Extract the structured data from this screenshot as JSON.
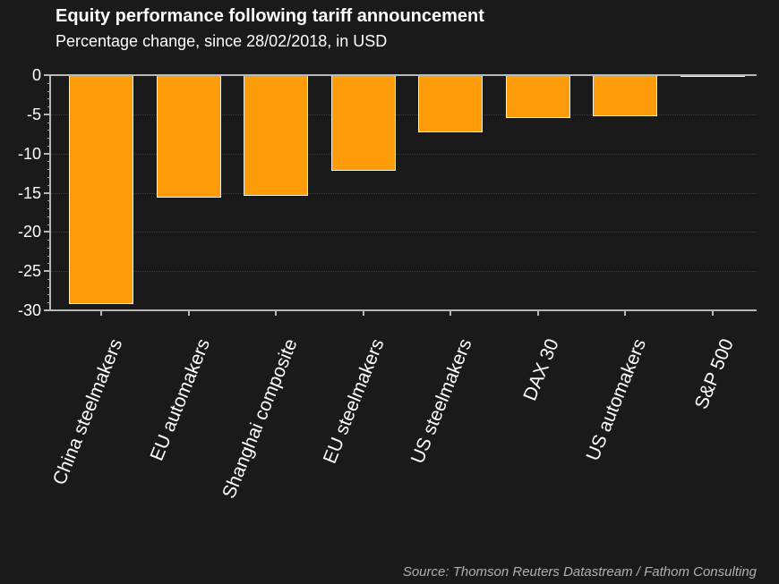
{
  "chart_data": {
    "type": "bar",
    "title": "Equity performance following tariff announcement",
    "subtitle": "Percentage change, since 28/02/2018, in USD",
    "categories": [
      "China steelmakers",
      "EU automakers",
      "Shanghai composite",
      "EU steelmakers",
      "US steelmakers",
      "DAX 30",
      "US automakers",
      "S&P 500"
    ],
    "values": [
      -29.2,
      -15.6,
      -15.4,
      -12.2,
      -7.3,
      -5.5,
      -5.3,
      -0.1
    ],
    "xlabel": "",
    "ylabel": "",
    "ylim": [
      -30,
      0
    ],
    "yticks": [
      0,
      -5,
      -10,
      -15,
      -20,
      -25,
      -30
    ],
    "minor_tick_step": 1,
    "grid": "horizontal dotted lines at major y ticks",
    "legend": "none",
    "source": "Source: Thomson Reuters Datastream / Fathom Consulting"
  },
  "colors": {
    "background": "#1a1a1a",
    "bar_fill": "#FF9C0A",
    "bar_edge": "#F2EFE7",
    "axis": "#b8b8b8",
    "grid": "#3d3d3d",
    "text": "#ffffff",
    "source_text": "#b0b0b0"
  }
}
